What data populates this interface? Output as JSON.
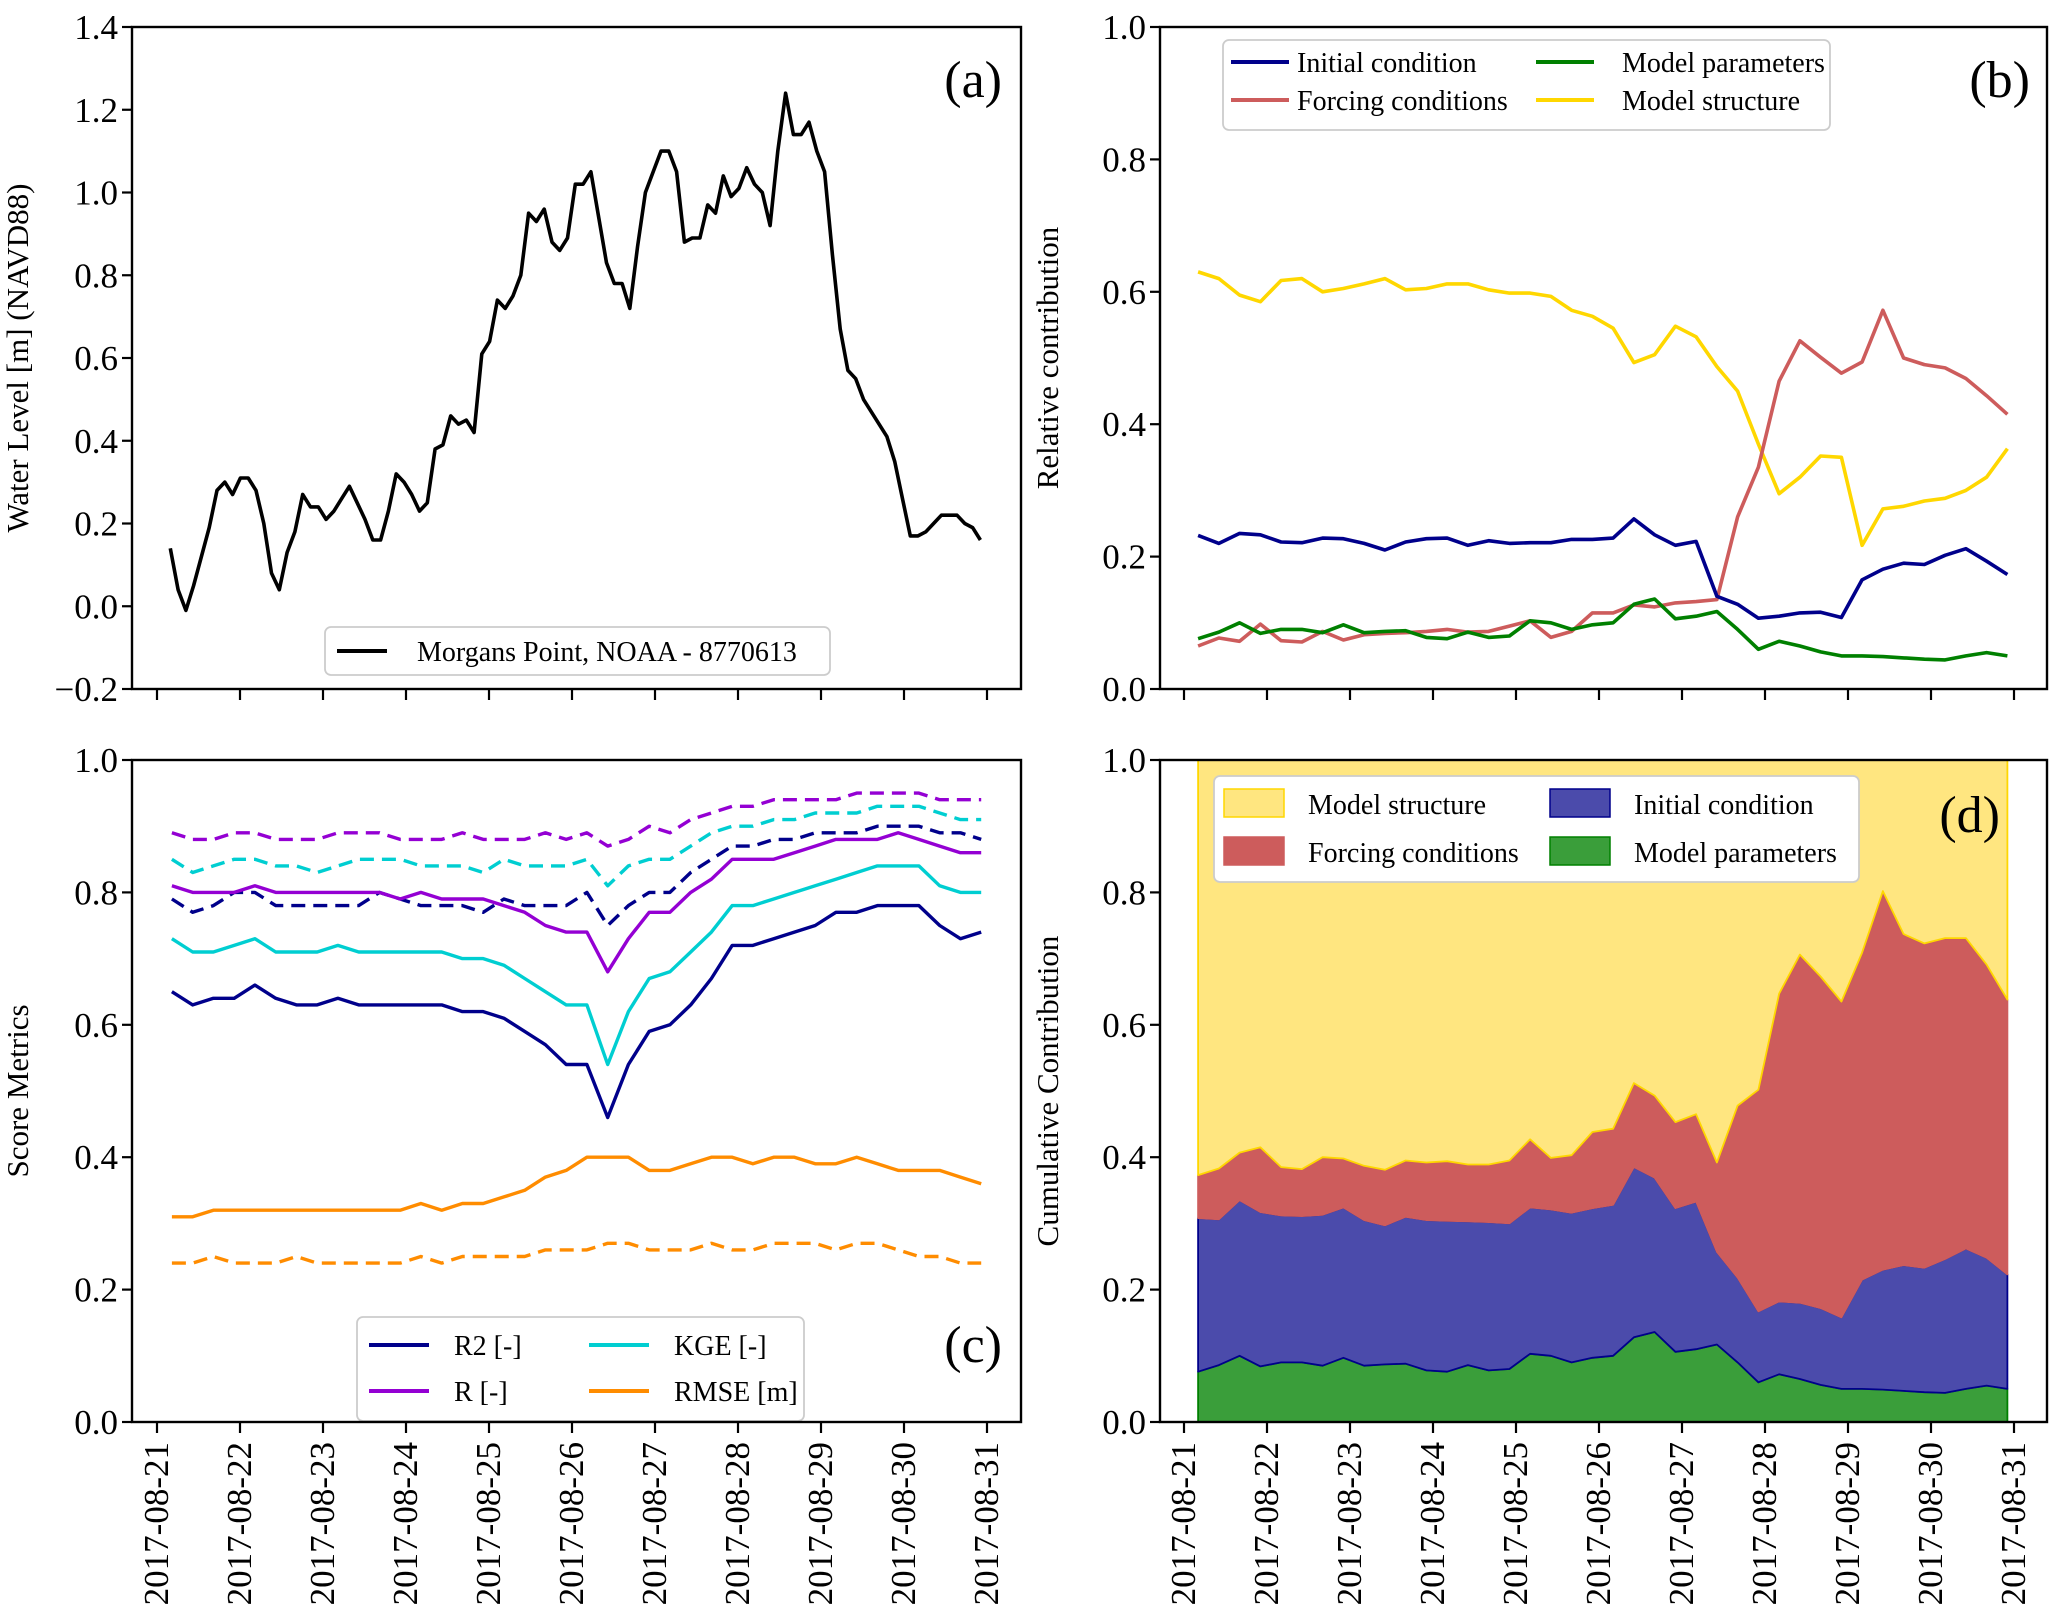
{
  "chart_data": [
    {
      "id": "a",
      "type": "line",
      "panel_label": "(a)",
      "title": "",
      "xlabel": "",
      "ylabel": "Water Level [m] (NAVD88)",
      "ylim": [
        -0.2,
        1.4
      ],
      "yticks": [
        "−0.2",
        "0.0",
        "0.2",
        "0.4",
        "0.6",
        "0.8",
        "1.0",
        "1.2",
        "1.4"
      ],
      "ytick_values": [
        -0.2,
        0.0,
        0.2,
        0.4,
        0.6,
        0.8,
        1.0,
        1.2,
        1.4
      ],
      "x_start": "2017-08-21",
      "x_unit": "days since 2017-08-21",
      "xlim": [
        -0.3,
        10.41
      ],
      "xtick_labels_visible": false,
      "x_range": [
        0.16,
        9.92
      ],
      "legend": {
        "placement": "lower-center",
        "entries": [
          "Morgans Point, NOAA - 8770613"
        ]
      },
      "series": [
        {
          "name": "Morgans Point, NOAA - 8770613",
          "color": "#000000",
          "style": "solid",
          "values": [
            0.14,
            0.04,
            -0.01,
            0.05,
            0.12,
            0.19,
            0.28,
            0.3,
            0.27,
            0.31,
            0.31,
            0.28,
            0.2,
            0.08,
            0.04,
            0.13,
            0.18,
            0.27,
            0.24,
            0.24,
            0.21,
            0.23,
            0.26,
            0.29,
            0.25,
            0.21,
            0.16,
            0.16,
            0.23,
            0.32,
            0.3,
            0.27,
            0.23,
            0.25,
            0.38,
            0.39,
            0.46,
            0.44,
            0.45,
            0.42,
            0.61,
            0.64,
            0.74,
            0.72,
            0.75,
            0.8,
            0.95,
            0.93,
            0.96,
            0.88,
            0.86,
            0.89,
            1.02,
            1.02,
            1.05,
            0.94,
            0.83,
            0.78,
            0.78,
            0.72,
            0.87,
            1.0,
            1.05,
            1.1,
            1.1,
            1.05,
            0.88,
            0.89,
            0.89,
            0.97,
            0.95,
            1.04,
            0.99,
            1.01,
            1.06,
            1.02,
            1.0,
            0.92,
            1.1,
            1.24,
            1.14,
            1.14,
            1.17,
            1.1,
            1.05,
            0.85,
            0.67,
            0.57,
            0.55,
            0.5,
            0.47,
            0.44,
            0.41,
            0.35,
            0.26,
            0.17,
            0.17,
            0.18,
            0.2,
            0.22,
            0.22,
            0.22,
            0.2,
            0.19,
            0.16
          ]
        }
      ]
    },
    {
      "id": "b",
      "type": "line",
      "panel_label": "(b)",
      "title": "",
      "xlabel": "",
      "ylabel": "Relative contribution",
      "ylim": [
        0,
        1
      ],
      "yticks": [
        "0.0",
        "0.2",
        "0.4",
        "0.6",
        "0.8",
        "1.0"
      ],
      "ytick_values": [
        0,
        0.2,
        0.4,
        0.6,
        0.8,
        1.0
      ],
      "xlim": [
        -0.3,
        10.41
      ],
      "xtick_labels_visible": false,
      "x_start_day": 0.17,
      "x_step_days": 0.25,
      "legend": {
        "placement": "top-left",
        "columns": 2,
        "entries": [
          "Initial condition",
          "Forcing conditions",
          "Model parameters",
          "Model structure"
        ]
      },
      "series": [
        {
          "name": "Initial condition",
          "color": "#00008b",
          "style": "solid",
          "values": [
            0.232,
            0.22,
            0.235,
            0.233,
            0.222,
            0.221,
            0.228,
            0.227,
            0.22,
            0.21,
            0.222,
            0.227,
            0.228,
            0.217,
            0.224,
            0.22,
            0.221,
            0.221,
            0.226,
            0.226,
            0.228,
            0.257,
            0.233,
            0.217,
            0.223,
            0.14,
            0.128,
            0.107,
            0.11,
            0.115,
            0.116,
            0.108,
            0.165,
            0.181,
            0.19,
            0.188,
            0.202,
            0.212,
            0.193,
            0.173
          ]
        },
        {
          "name": "Forcing conditions",
          "color": "#cd5c5c",
          "style": "solid",
          "values": [
            0.065,
            0.077,
            0.072,
            0.098,
            0.073,
            0.071,
            0.087,
            0.074,
            0.082,
            0.084,
            0.085,
            0.087,
            0.09,
            0.086,
            0.087,
            0.095,
            0.103,
            0.078,
            0.087,
            0.115,
            0.115,
            0.127,
            0.124,
            0.13,
            0.132,
            0.135,
            0.26,
            0.335,
            0.465,
            0.526,
            0.501,
            0.477,
            0.494,
            0.572,
            0.5,
            0.49,
            0.485,
            0.469,
            0.443,
            0.415
          ]
        },
        {
          "name": "Model parameters",
          "color": "#008000",
          "style": "solid",
          "values": [
            0.076,
            0.086,
            0.1,
            0.084,
            0.09,
            0.09,
            0.085,
            0.097,
            0.085,
            0.087,
            0.088,
            0.078,
            0.076,
            0.086,
            0.078,
            0.08,
            0.103,
            0.1,
            0.09,
            0.097,
            0.1,
            0.128,
            0.136,
            0.106,
            0.11,
            0.117,
            0.09,
            0.06,
            0.072,
            0.065,
            0.056,
            0.05,
            0.05,
            0.049,
            0.047,
            0.045,
            0.044,
            0.05,
            0.055,
            0.05
          ]
        },
        {
          "name": "Model structure",
          "color": "#ffd700",
          "style": "solid",
          "values": [
            0.63,
            0.62,
            0.595,
            0.585,
            0.617,
            0.62,
            0.6,
            0.605,
            0.612,
            0.62,
            0.603,
            0.605,
            0.612,
            0.612,
            0.603,
            0.598,
            0.598,
            0.593,
            0.572,
            0.563,
            0.545,
            0.493,
            0.505,
            0.548,
            0.532,
            0.487,
            0.45,
            0.37,
            0.295,
            0.32,
            0.352,
            0.35,
            0.217,
            0.272,
            0.276,
            0.284,
            0.288,
            0.3,
            0.32,
            0.363
          ]
        }
      ]
    },
    {
      "id": "c",
      "type": "line",
      "panel_label": "(c)",
      "title": "",
      "xlabel": "",
      "ylabel": "Score Metrics",
      "ylim": [
        0,
        1
      ],
      "yticks": [
        "0.0",
        "0.2",
        "0.4",
        "0.6",
        "0.8",
        "1.0"
      ],
      "ytick_values": [
        0,
        0.2,
        0.4,
        0.6,
        0.8,
        1.0
      ],
      "xlim": [
        -0.3,
        10.41
      ],
      "xticks": [
        "2017-08-21",
        "2017-08-22",
        "2017-08-23",
        "2017-08-24",
        "2017-08-25",
        "2017-08-26",
        "2017-08-27",
        "2017-08-28",
        "2017-08-29",
        "2017-08-30",
        "2017-08-31"
      ],
      "x_start_day": 0.18,
      "x_step_days": 0.25,
      "legend": {
        "placement": "bottom-center",
        "columns": 2,
        "entries": [
          "R2 [-]",
          "R [-]",
          "KGE [-]",
          "RMSE [m]"
        ]
      },
      "series": [
        {
          "name": "R2 [-]",
          "color": "#00008b",
          "style": "solid",
          "values": [
            0.65,
            0.63,
            0.64,
            0.64,
            0.66,
            0.64,
            0.63,
            0.63,
            0.64,
            0.63,
            0.63,
            0.63,
            0.63,
            0.63,
            0.62,
            0.62,
            0.61,
            0.59,
            0.57,
            0.54,
            0.54,
            0.46,
            0.54,
            0.59,
            0.6,
            0.63,
            0.67,
            0.72,
            0.72,
            0.73,
            0.74,
            0.75,
            0.77,
            0.77,
            0.78,
            0.78,
            0.78,
            0.75,
            0.73,
            0.74
          ]
        },
        {
          "name": "R2 [-] (dashed)",
          "color": "#00008b",
          "style": "dashed",
          "values": [
            0.79,
            0.77,
            0.78,
            0.8,
            0.8,
            0.78,
            0.78,
            0.78,
            0.78,
            0.78,
            0.8,
            0.79,
            0.78,
            0.78,
            0.78,
            0.77,
            0.79,
            0.78,
            0.78,
            0.78,
            0.8,
            0.75,
            0.78,
            0.8,
            0.8,
            0.83,
            0.85,
            0.87,
            0.87,
            0.88,
            0.88,
            0.89,
            0.89,
            0.89,
            0.9,
            0.9,
            0.9,
            0.89,
            0.89,
            0.88
          ]
        },
        {
          "name": "R [-]",
          "color": "#9400d3",
          "style": "solid",
          "values": [
            0.81,
            0.8,
            0.8,
            0.8,
            0.81,
            0.8,
            0.8,
            0.8,
            0.8,
            0.8,
            0.8,
            0.79,
            0.8,
            0.79,
            0.79,
            0.79,
            0.78,
            0.77,
            0.75,
            0.74,
            0.74,
            0.68,
            0.73,
            0.77,
            0.77,
            0.8,
            0.82,
            0.85,
            0.85,
            0.85,
            0.86,
            0.87,
            0.88,
            0.88,
            0.88,
            0.89,
            0.88,
            0.87,
            0.86,
            0.86
          ]
        },
        {
          "name": "R [-] (dashed)",
          "color": "#9400d3",
          "style": "dashed",
          "values": [
            0.89,
            0.88,
            0.88,
            0.89,
            0.89,
            0.88,
            0.88,
            0.88,
            0.89,
            0.89,
            0.89,
            0.88,
            0.88,
            0.88,
            0.89,
            0.88,
            0.88,
            0.88,
            0.89,
            0.88,
            0.89,
            0.87,
            0.88,
            0.9,
            0.89,
            0.91,
            0.92,
            0.93,
            0.93,
            0.94,
            0.94,
            0.94,
            0.94,
            0.95,
            0.95,
            0.95,
            0.95,
            0.94,
            0.94,
            0.94
          ]
        },
        {
          "name": "KGE [-]",
          "color": "#00ced1",
          "style": "solid",
          "values": [
            0.73,
            0.71,
            0.71,
            0.72,
            0.73,
            0.71,
            0.71,
            0.71,
            0.72,
            0.71,
            0.71,
            0.71,
            0.71,
            0.71,
            0.7,
            0.7,
            0.69,
            0.67,
            0.65,
            0.63,
            0.63,
            0.54,
            0.62,
            0.67,
            0.68,
            0.71,
            0.74,
            0.78,
            0.78,
            0.79,
            0.8,
            0.81,
            0.82,
            0.83,
            0.84,
            0.84,
            0.84,
            0.81,
            0.8,
            0.8
          ]
        },
        {
          "name": "KGE [-] (dashed)",
          "color": "#00ced1",
          "style": "dashed",
          "values": [
            0.85,
            0.83,
            0.84,
            0.85,
            0.85,
            0.84,
            0.84,
            0.83,
            0.84,
            0.85,
            0.85,
            0.85,
            0.84,
            0.84,
            0.84,
            0.83,
            0.85,
            0.84,
            0.84,
            0.84,
            0.85,
            0.81,
            0.84,
            0.85,
            0.85,
            0.87,
            0.89,
            0.9,
            0.9,
            0.91,
            0.91,
            0.92,
            0.92,
            0.92,
            0.93,
            0.93,
            0.93,
            0.92,
            0.91,
            0.91
          ]
        },
        {
          "name": "RMSE [m]",
          "color": "#ff8c00",
          "style": "solid",
          "values": [
            0.31,
            0.31,
            0.32,
            0.32,
            0.32,
            0.32,
            0.32,
            0.32,
            0.32,
            0.32,
            0.32,
            0.32,
            0.33,
            0.32,
            0.33,
            0.33,
            0.34,
            0.35,
            0.37,
            0.38,
            0.4,
            0.4,
            0.4,
            0.38,
            0.38,
            0.39,
            0.4,
            0.4,
            0.39,
            0.4,
            0.4,
            0.39,
            0.39,
            0.4,
            0.39,
            0.38,
            0.38,
            0.38,
            0.37,
            0.36
          ]
        },
        {
          "name": "RMSE [m] (dashed)",
          "color": "#ff8c00",
          "style": "dashed",
          "values": [
            0.24,
            0.24,
            0.25,
            0.24,
            0.24,
            0.24,
            0.25,
            0.24,
            0.24,
            0.24,
            0.24,
            0.24,
            0.25,
            0.24,
            0.25,
            0.25,
            0.25,
            0.25,
            0.26,
            0.26,
            0.26,
            0.27,
            0.27,
            0.26,
            0.26,
            0.26,
            0.27,
            0.26,
            0.26,
            0.27,
            0.27,
            0.27,
            0.26,
            0.27,
            0.27,
            0.26,
            0.25,
            0.25,
            0.24,
            0.24
          ]
        }
      ]
    },
    {
      "id": "d",
      "type": "area",
      "stacked": true,
      "panel_label": "(d)",
      "title": "",
      "xlabel": "",
      "ylabel": "Cumulative Contribution",
      "ylim": [
        0,
        1
      ],
      "yticks": [
        "0.0",
        "0.2",
        "0.4",
        "0.6",
        "0.8",
        "1.0"
      ],
      "ytick_values": [
        0,
        0.2,
        0.4,
        0.6,
        0.8,
        1.0
      ],
      "xlim": [
        -0.3,
        10.41
      ],
      "xticks": [
        "2017-08-21",
        "2017-08-22",
        "2017-08-23",
        "2017-08-24",
        "2017-08-25",
        "2017-08-26",
        "2017-08-27",
        "2017-08-28",
        "2017-08-29",
        "2017-08-30",
        "2017-08-31"
      ],
      "x_start_day": 0.17,
      "x_step_days": 0.25,
      "stack_order": [
        "Model parameters",
        "Initial condition",
        "Forcing conditions",
        "Model structure"
      ],
      "legend": {
        "placement": "top-left",
        "columns": 2,
        "entries": [
          "Model structure",
          "Forcing conditions",
          "Initial condition",
          "Model parameters"
        ]
      },
      "series": [
        {
          "name": "Model parameters",
          "color": "#3a9e3a",
          "edge": "#008000",
          "source": "b"
        },
        {
          "name": "Initial condition",
          "color": "#4b4bab",
          "edge": "#00008b",
          "source": "b"
        },
        {
          "name": "Forcing conditions",
          "color": "#cd5c5c",
          "edge": "#cd5c5c",
          "source": "b"
        },
        {
          "name": "Model structure",
          "color": "#ffe680",
          "edge": "#ffd700",
          "source": "b"
        }
      ]
    }
  ]
}
